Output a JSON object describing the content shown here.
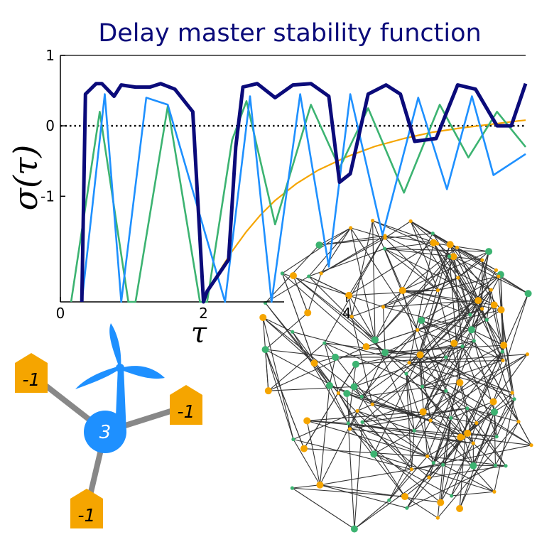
{
  "chart_data": {
    "type": "line",
    "title": "Delay master stability function",
    "xlabel": "τ",
    "ylabel": "σ(τ)",
    "xlim": [
      0,
      6.5
    ],
    "ylim": [
      -2.5,
      1
    ],
    "xticks": [
      0,
      2,
      4
    ],
    "yticks": [
      1,
      0,
      -1
    ],
    "xtick_labels": [
      "0",
      "2",
      "4"
    ],
    "ytick_labels": [
      "1",
      "0",
      "-1"
    ],
    "zero_line": "dotted",
    "grid": false,
    "series": [
      {
        "color": "#f5a500",
        "x": [
          2.0,
          2.2,
          2.4,
          2.6,
          2.8,
          3.0,
          3.3,
          3.6,
          4.0,
          4.4,
          4.8,
          5.2,
          5.6,
          6.0,
          6.4,
          6.5
        ],
        "y": [
          -2.45,
          -2.1,
          -1.78,
          -1.5,
          -1.26,
          -1.06,
          -0.82,
          -0.63,
          -0.44,
          -0.29,
          -0.18,
          -0.09,
          -0.03,
          0.02,
          0.07,
          0.08
        ]
      },
      {
        "color": "#3cb371",
        "x": [
          0.15,
          0.55,
          0.95,
          1.05,
          1.5,
          1.95,
          2.05,
          2.4,
          2.6,
          3.0,
          3.5,
          3.9,
          4.3,
          4.8,
          5.3,
          5.7,
          6.1,
          6.5
        ],
        "y": [
          -2.5,
          0.2,
          -2.5,
          -2.5,
          0.28,
          -2.5,
          -2.5,
          -0.2,
          0.35,
          -1.4,
          0.3,
          -0.6,
          0.25,
          -0.95,
          0.3,
          -0.45,
          0.2,
          -0.3
        ]
      },
      {
        "color": "#1e90ff",
        "x": [
          0.3,
          0.62,
          0.85,
          1.2,
          1.5,
          2.3,
          2.65,
          2.95,
          3.35,
          3.75,
          4.05,
          4.5,
          5.0,
          5.4,
          5.75,
          6.05,
          6.5
        ],
        "y": [
          -2.5,
          0.45,
          -2.5,
          0.4,
          0.3,
          -2.5,
          0.42,
          -2.5,
          0.45,
          -2.0,
          0.45,
          -1.55,
          0.4,
          -0.9,
          0.42,
          -0.7,
          -0.4
        ]
      },
      {
        "color": "#0b0b7a",
        "x": [
          0.3,
          0.35,
          0.5,
          0.58,
          0.75,
          0.85,
          1.05,
          1.25,
          1.4,
          1.6,
          1.85,
          2.0,
          2.05,
          2.35,
          2.45,
          2.55,
          2.75,
          3.0,
          3.25,
          3.5,
          3.75,
          3.9,
          4.05,
          4.3,
          4.55,
          4.75,
          4.95,
          5.25,
          5.55,
          5.8,
          6.1,
          6.3,
          6.5
        ],
        "y": [
          -2.5,
          0.45,
          0.6,
          0.6,
          0.42,
          0.58,
          0.55,
          0.55,
          0.6,
          0.52,
          0.2,
          -2.5,
          -2.35,
          -1.9,
          -0.3,
          0.55,
          0.6,
          0.4,
          0.58,
          0.6,
          0.42,
          -0.8,
          -0.68,
          0.45,
          0.58,
          0.45,
          -0.22,
          -0.18,
          0.58,
          0.52,
          0.0,
          0.0,
          0.6
        ]
      }
    ]
  },
  "network": {
    "node_colors": {
      "hub": "#1e90ff",
      "neighbor": "#f5a500",
      "green": "#3cb371",
      "edge": "#333333",
      "spoke": "#888888"
    },
    "hub_value": "3",
    "neighbor_values": [
      "-1",
      "-1",
      "-1"
    ],
    "hub_icon": "wind-turbine-icon"
  }
}
